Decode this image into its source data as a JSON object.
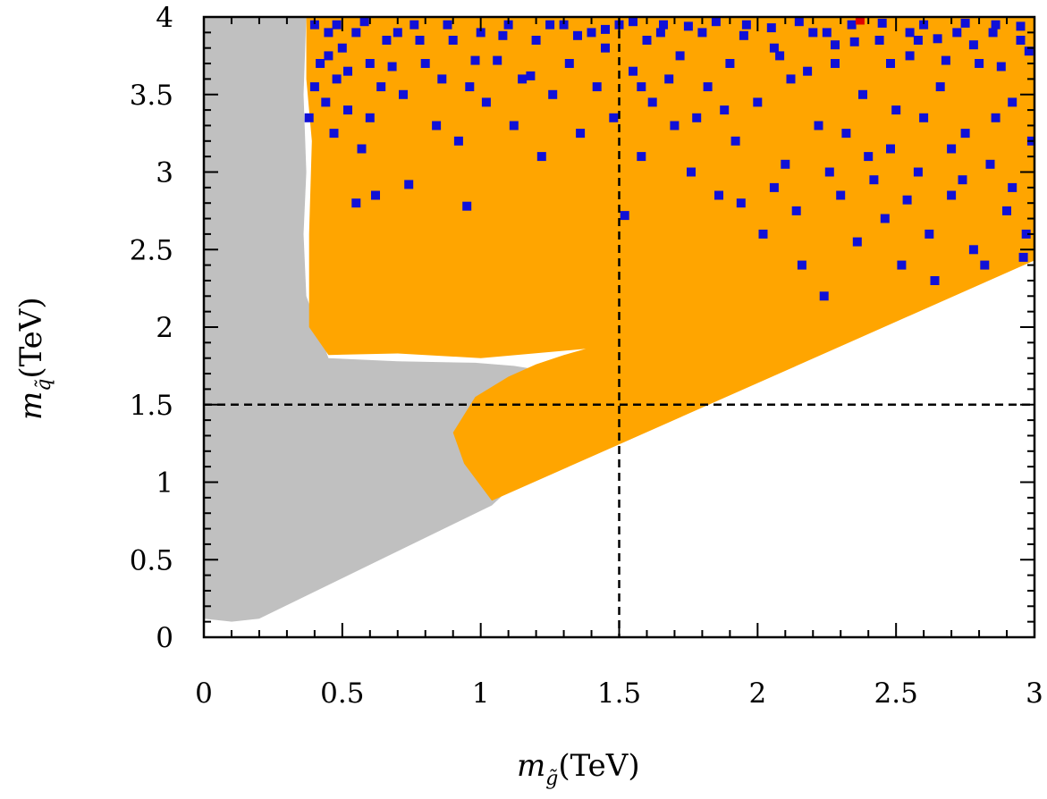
{
  "chart_data": {
    "type": "scatter",
    "title": "",
    "xlabel": {
      "base": "m",
      "sub": "g̃",
      "unit": "(TeV)"
    },
    "ylabel": {
      "base": "m",
      "sub": "q̃",
      "unit": "(TeV)"
    },
    "xlim": [
      0,
      3
    ],
    "ylim": [
      0,
      4
    ],
    "x_ticks": [
      0,
      0.5,
      1,
      1.5,
      2,
      2.5,
      3
    ],
    "y_ticks": [
      0,
      0.5,
      1,
      1.5,
      2,
      2.5,
      3,
      3.5,
      4
    ],
    "x_tick_labels": [
      "0",
      "0.5",
      "1",
      "1.5",
      "2",
      "2.5",
      "3"
    ],
    "y_tick_labels": [
      "0",
      "0.5",
      "1",
      "1.5",
      "2",
      "2.5",
      "3",
      "3.5",
      "4"
    ],
    "grid": false,
    "reference_lines": {
      "vertical_x": 1.5,
      "horizontal_y": 1.5,
      "style": "dashed",
      "color": "#000000"
    },
    "colors": {
      "gray": "#c0c0c0",
      "orange": "#ffa500",
      "blue": "#1010d8",
      "red": "#e00000"
    },
    "regions": [
      {
        "name": "gray-region",
        "color": "#c0c0c0",
        "polygon": [
          [
            0,
            0.12
          ],
          [
            0.1,
            0.1
          ],
          [
            0.2,
            0.12
          ],
          [
            1.04,
            0.85
          ],
          [
            1.1,
            0.95
          ],
          [
            1.3,
            1.2
          ],
          [
            1.38,
            1.5
          ],
          [
            1.45,
            1.62
          ],
          [
            1.3,
            1.7
          ],
          [
            1.12,
            1.75
          ],
          [
            0.98,
            1.77
          ],
          [
            0.7,
            1.78
          ],
          [
            0.45,
            1.8
          ],
          [
            0.37,
            2.2
          ],
          [
            0.36,
            2.6
          ],
          [
            0.37,
            3.0
          ],
          [
            0.36,
            3.5
          ],
          [
            0.37,
            4.0
          ],
          [
            0.0,
            4.0
          ]
        ]
      },
      {
        "name": "orange-region",
        "color": "#ffa500",
        "polygon": [
          [
            0.37,
            4.0
          ],
          [
            3.0,
            4.0
          ],
          [
            3.0,
            2.43
          ],
          [
            1.04,
            0.88
          ],
          [
            0.94,
            1.12
          ],
          [
            0.9,
            1.32
          ],
          [
            0.98,
            1.55
          ],
          [
            1.1,
            1.68
          ],
          [
            1.2,
            1.76
          ],
          [
            1.3,
            1.82
          ],
          [
            1.38,
            1.86
          ],
          [
            1.0,
            1.8
          ],
          [
            0.7,
            1.83
          ],
          [
            0.45,
            1.82
          ],
          [
            0.38,
            2.0
          ],
          [
            0.38,
            2.6
          ],
          [
            0.39,
            3.2
          ],
          [
            0.37,
            3.6
          ]
        ]
      }
    ],
    "scatter_series": [
      {
        "name": "blue-points",
        "color": "#1010d8",
        "points": [
          [
            0.38,
            3.35
          ],
          [
            0.4,
            3.95
          ],
          [
            0.4,
            3.55
          ],
          [
            0.42,
            3.7
          ],
          [
            0.44,
            3.45
          ],
          [
            0.45,
            3.9
          ],
          [
            0.47,
            3.25
          ],
          [
            0.48,
            3.6
          ],
          [
            0.5,
            3.8
          ],
          [
            0.52,
            3.4
          ],
          [
            0.55,
            3.9
          ],
          [
            0.55,
            2.8
          ],
          [
            0.57,
            3.15
          ],
          [
            0.6,
            3.35
          ],
          [
            0.6,
            3.7
          ],
          [
            0.62,
            2.85
          ],
          [
            0.64,
            3.55
          ],
          [
            0.66,
            3.85
          ],
          [
            0.7,
            3.9
          ],
          [
            0.72,
            3.5
          ],
          [
            0.74,
            2.92
          ],
          [
            0.76,
            3.95
          ],
          [
            0.8,
            3.7
          ],
          [
            0.84,
            3.3
          ],
          [
            0.86,
            3.6
          ],
          [
            0.9,
            3.85
          ],
          [
            0.92,
            3.2
          ],
          [
            0.95,
            2.78
          ],
          [
            0.96,
            3.55
          ],
          [
            1.0,
            3.9
          ],
          [
            1.02,
            3.45
          ],
          [
            1.06,
            3.72
          ],
          [
            1.1,
            3.95
          ],
          [
            1.12,
            3.3
          ],
          [
            1.15,
            3.6
          ],
          [
            1.2,
            3.85
          ],
          [
            1.22,
            3.1
          ],
          [
            1.26,
            3.5
          ],
          [
            1.3,
            3.95
          ],
          [
            1.32,
            3.7
          ],
          [
            1.36,
            3.25
          ],
          [
            1.4,
            3.9
          ],
          [
            1.42,
            3.55
          ],
          [
            1.45,
            3.8
          ],
          [
            1.48,
            3.35
          ],
          [
            1.5,
            3.95
          ],
          [
            1.52,
            2.72
          ],
          [
            1.55,
            3.65
          ],
          [
            1.58,
            3.1
          ],
          [
            1.6,
            3.85
          ],
          [
            1.62,
            3.45
          ],
          [
            1.66,
            3.95
          ],
          [
            1.7,
            3.3
          ],
          [
            1.72,
            3.75
          ],
          [
            1.76,
            3.0
          ],
          [
            1.8,
            3.9
          ],
          [
            1.82,
            3.55
          ],
          [
            1.86,
            2.85
          ],
          [
            1.9,
            3.7
          ],
          [
            1.92,
            3.2
          ],
          [
            1.96,
            3.95
          ],
          [
            2.0,
            3.45
          ],
          [
            2.02,
            2.6
          ],
          [
            2.06,
            3.8
          ],
          [
            2.1,
            3.05
          ],
          [
            2.12,
            3.6
          ],
          [
            2.16,
            2.4
          ],
          [
            2.2,
            3.9
          ],
          [
            2.22,
            3.3
          ],
          [
            2.24,
            2.2
          ],
          [
            2.28,
            3.7
          ],
          [
            2.3,
            2.85
          ],
          [
            2.34,
            3.95
          ],
          [
            2.36,
            2.55
          ],
          [
            2.38,
            3.5
          ],
          [
            2.4,
            3.1
          ],
          [
            2.44,
            3.85
          ],
          [
            2.46,
            2.7
          ],
          [
            2.5,
            3.4
          ],
          [
            2.52,
            2.4
          ],
          [
            2.55,
            3.75
          ],
          [
            2.58,
            3.0
          ],
          [
            2.6,
            3.95
          ],
          [
            2.62,
            2.6
          ],
          [
            2.66,
            3.55
          ],
          [
            2.7,
            2.85
          ],
          [
            2.72,
            3.9
          ],
          [
            2.75,
            3.25
          ],
          [
            2.78,
            2.5
          ],
          [
            2.8,
            3.7
          ],
          [
            2.84,
            3.05
          ],
          [
            2.86,
            3.95
          ],
          [
            2.9,
            2.75
          ],
          [
            2.92,
            3.45
          ],
          [
            2.95,
            3.85
          ],
          [
            2.97,
            2.6
          ],
          [
            2.99,
            3.2
          ],
          [
            1.25,
            3.95
          ],
          [
            1.35,
            3.88
          ],
          [
            1.45,
            3.92
          ],
          [
            1.55,
            3.97
          ],
          [
            1.65,
            3.9
          ],
          [
            1.75,
            3.94
          ],
          [
            1.85,
            3.97
          ],
          [
            1.95,
            3.88
          ],
          [
            2.05,
            3.93
          ],
          [
            2.15,
            3.97
          ],
          [
            2.25,
            3.9
          ],
          [
            2.35,
            3.84
          ],
          [
            2.45,
            3.96
          ],
          [
            2.55,
            3.9
          ],
          [
            2.65,
            3.86
          ],
          [
            2.75,
            3.96
          ],
          [
            2.85,
            3.9
          ],
          [
            2.95,
            3.94
          ],
          [
            0.45,
            3.75
          ],
          [
            0.48,
            3.95
          ],
          [
            0.52,
            3.65
          ],
          [
            0.58,
            3.97
          ],
          [
            0.68,
            3.68
          ],
          [
            0.78,
            3.85
          ],
          [
            0.88,
            3.95
          ],
          [
            0.98,
            3.72
          ],
          [
            1.08,
            3.88
          ],
          [
            1.18,
            3.62
          ],
          [
            2.08,
            3.75
          ],
          [
            2.18,
            3.65
          ],
          [
            2.28,
            3.82
          ],
          [
            2.48,
            3.7
          ],
          [
            2.58,
            3.85
          ],
          [
            2.68,
            3.72
          ],
          [
            2.78,
            3.82
          ],
          [
            2.88,
            3.68
          ],
          [
            2.98,
            3.78
          ],
          [
            2.06,
            2.9
          ],
          [
            2.14,
            2.75
          ],
          [
            2.26,
            3.0
          ],
          [
            2.42,
            2.95
          ],
          [
            2.54,
            2.82
          ],
          [
            2.64,
            2.3
          ],
          [
            2.74,
            2.95
          ],
          [
            2.82,
            2.4
          ],
          [
            2.92,
            2.9
          ],
          [
            2.96,
            2.45
          ],
          [
            1.94,
            2.8
          ],
          [
            1.88,
            3.4
          ],
          [
            1.68,
            3.6
          ],
          [
            1.78,
            3.35
          ],
          [
            1.58,
            3.55
          ],
          [
            2.32,
            3.25
          ],
          [
            2.48,
            3.15
          ],
          [
            2.6,
            3.35
          ],
          [
            2.7,
            3.15
          ],
          [
            2.86,
            3.35
          ]
        ]
      },
      {
        "name": "red-points",
        "color": "#e00000",
        "points": [
          [
            2.37,
            3.98
          ]
        ]
      }
    ]
  }
}
